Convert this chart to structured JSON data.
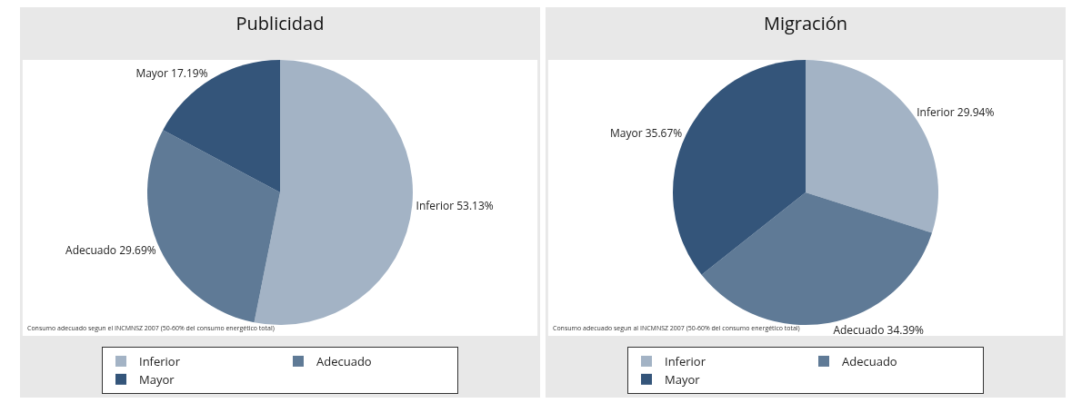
{
  "chart_data": [
    {
      "type": "pie",
      "title": "Publicidad",
      "categories": [
        "Inferior",
        "Adecuado",
        "Mayor"
      ],
      "values": [
        53.13,
        29.69,
        17.19
      ],
      "colors": [
        "#a3b3c5",
        "#5f7a96",
        "#34557a"
      ],
      "value_labels": [
        "Inferior 53.13%",
        "Adecuado 29.69%",
        "Mayor 17.19%"
      ],
      "legend": "bottom",
      "annotations": [
        "Consumo adecuado segun el INCMNSZ 2007 (50-60% del consumo energético total)"
      ]
    },
    {
      "type": "pie",
      "title": "Migración",
      "categories": [
        "Inferior",
        "Adecuado",
        "Mayor"
      ],
      "values": [
        29.94,
        34.39,
        35.67
      ],
      "colors": [
        "#a3b3c5",
        "#5f7a96",
        "#34557a"
      ],
      "value_labels": [
        "Inferior 29.94%",
        "Adecuado 34.39%",
        "Mayor 35.67%"
      ],
      "legend": "bottom",
      "annotations": [
        "Consumo adecuado segun al INCMNSZ 2007 (50-60% del consumo energético total)"
      ]
    }
  ]
}
